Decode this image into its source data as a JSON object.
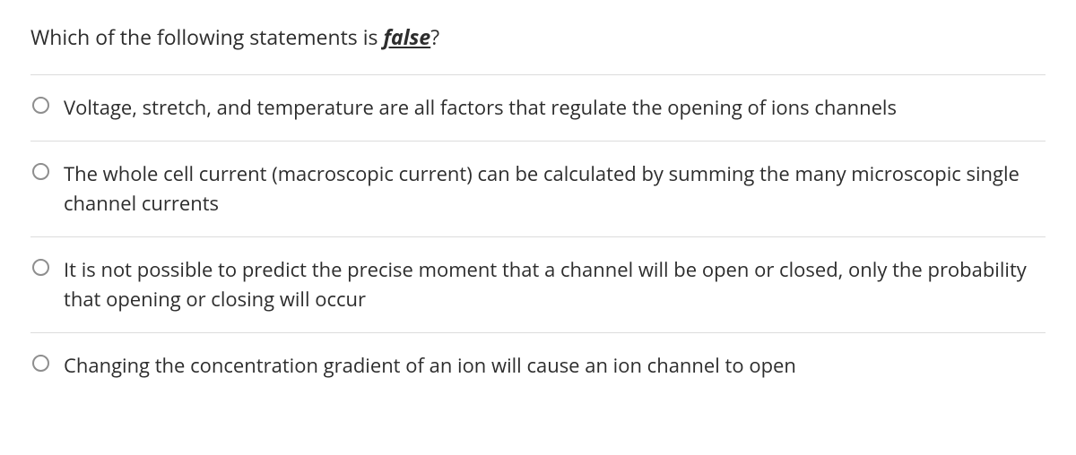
{
  "question": {
    "prefix": "Which of the following statements is ",
    "emph": "false",
    "suffix": "?"
  },
  "options": [
    {
      "text": "Voltage, stretch, and temperature are all factors that regulate the opening of ions channels"
    },
    {
      "text": "The whole cell current (macroscopic current) can be calculated by summing the many microscopic single channel currents"
    },
    {
      "text": "It is not possible to predict the precise moment that a channel will be open or closed, only the probability that opening or closing will occur"
    },
    {
      "text": "Changing the concentration gradient of an ion will cause an ion channel to open"
    }
  ],
  "styles": {
    "text_color": "#2d2d2d",
    "divider_color": "#dcdcdc",
    "radio_border_color": "#8e8e8e",
    "background_color": "#ffffff",
    "question_fontsize": 23,
    "option_fontsize": 22
  }
}
